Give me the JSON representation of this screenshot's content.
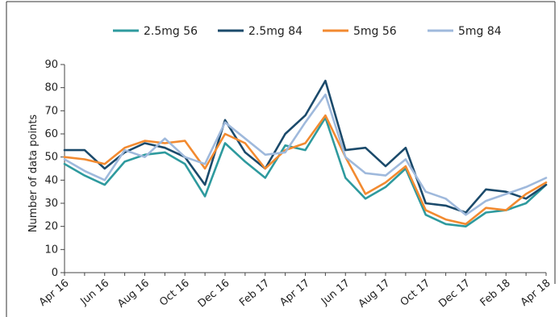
{
  "chart_data": {
    "type": "line",
    "title": "",
    "xlabel": "",
    "ylabel": "Number of data points",
    "ylim": [
      0,
      90
    ],
    "yticks": [
      0,
      10,
      20,
      30,
      40,
      50,
      60,
      70,
      80,
      90
    ],
    "grid": false,
    "legend_position": "top",
    "x": [
      "Apr 16",
      "May 16",
      "Jun 16",
      "Jul 16",
      "Aug 16",
      "Sep 16",
      "Oct 16",
      "Nov 16",
      "Dec 16",
      "Jan 17",
      "Feb 17",
      "Mar 17",
      "Apr 17",
      "May 17",
      "Jun 17",
      "Jul 17",
      "Aug 17",
      "Sep 17",
      "Oct 17",
      "Nov 17",
      "Dec 17",
      "Jan 18",
      "Feb 18",
      "Mar 18",
      "Apr 18"
    ],
    "tick_labels": [
      "Apr 16",
      "",
      "Jun 16",
      "",
      "Aug 16",
      "",
      "Oct 16",
      "",
      "Dec 16",
      "",
      "Feb 17",
      "",
      "Apr 17",
      "",
      "Jun 17",
      "",
      "Aug 17",
      "",
      "Oct 17",
      "",
      "Dec 17",
      "",
      "Feb 18",
      "",
      "Apr 18"
    ],
    "series": [
      {
        "name": "2.5mg 56",
        "color": "#2e9a9e",
        "values": [
          47,
          42,
          38,
          48,
          51,
          52,
          47,
          33,
          56,
          48,
          41,
          55,
          53,
          67,
          41,
          32,
          37,
          45,
          25,
          21,
          20,
          26,
          27,
          30,
          38
        ]
      },
      {
        "name": "2.5mg 84",
        "color": "#1b4a6b",
        "values": [
          53,
          53,
          45,
          52,
          56,
          54,
          50,
          38,
          66,
          52,
          45,
          60,
          68,
          83,
          53,
          54,
          46,
          54,
          30,
          29,
          26,
          36,
          35,
          32,
          38
        ]
      },
      {
        "name": "5mg 56",
        "color": "#f28a30",
        "values": [
          50,
          49,
          47,
          54,
          57,
          56,
          57,
          45,
          60,
          56,
          45,
          53,
          56,
          68,
          50,
          34,
          39,
          46,
          27,
          23,
          21,
          28,
          27,
          34,
          39
        ]
      },
      {
        "name": "5mg 84",
        "color": "#9fb9dc",
        "values": [
          49,
          44,
          40,
          53,
          50,
          58,
          50,
          47,
          65,
          58,
          51,
          52,
          65,
          77,
          50,
          43,
          42,
          49,
          35,
          32,
          25,
          31,
          34,
          37,
          41
        ]
      }
    ]
  }
}
